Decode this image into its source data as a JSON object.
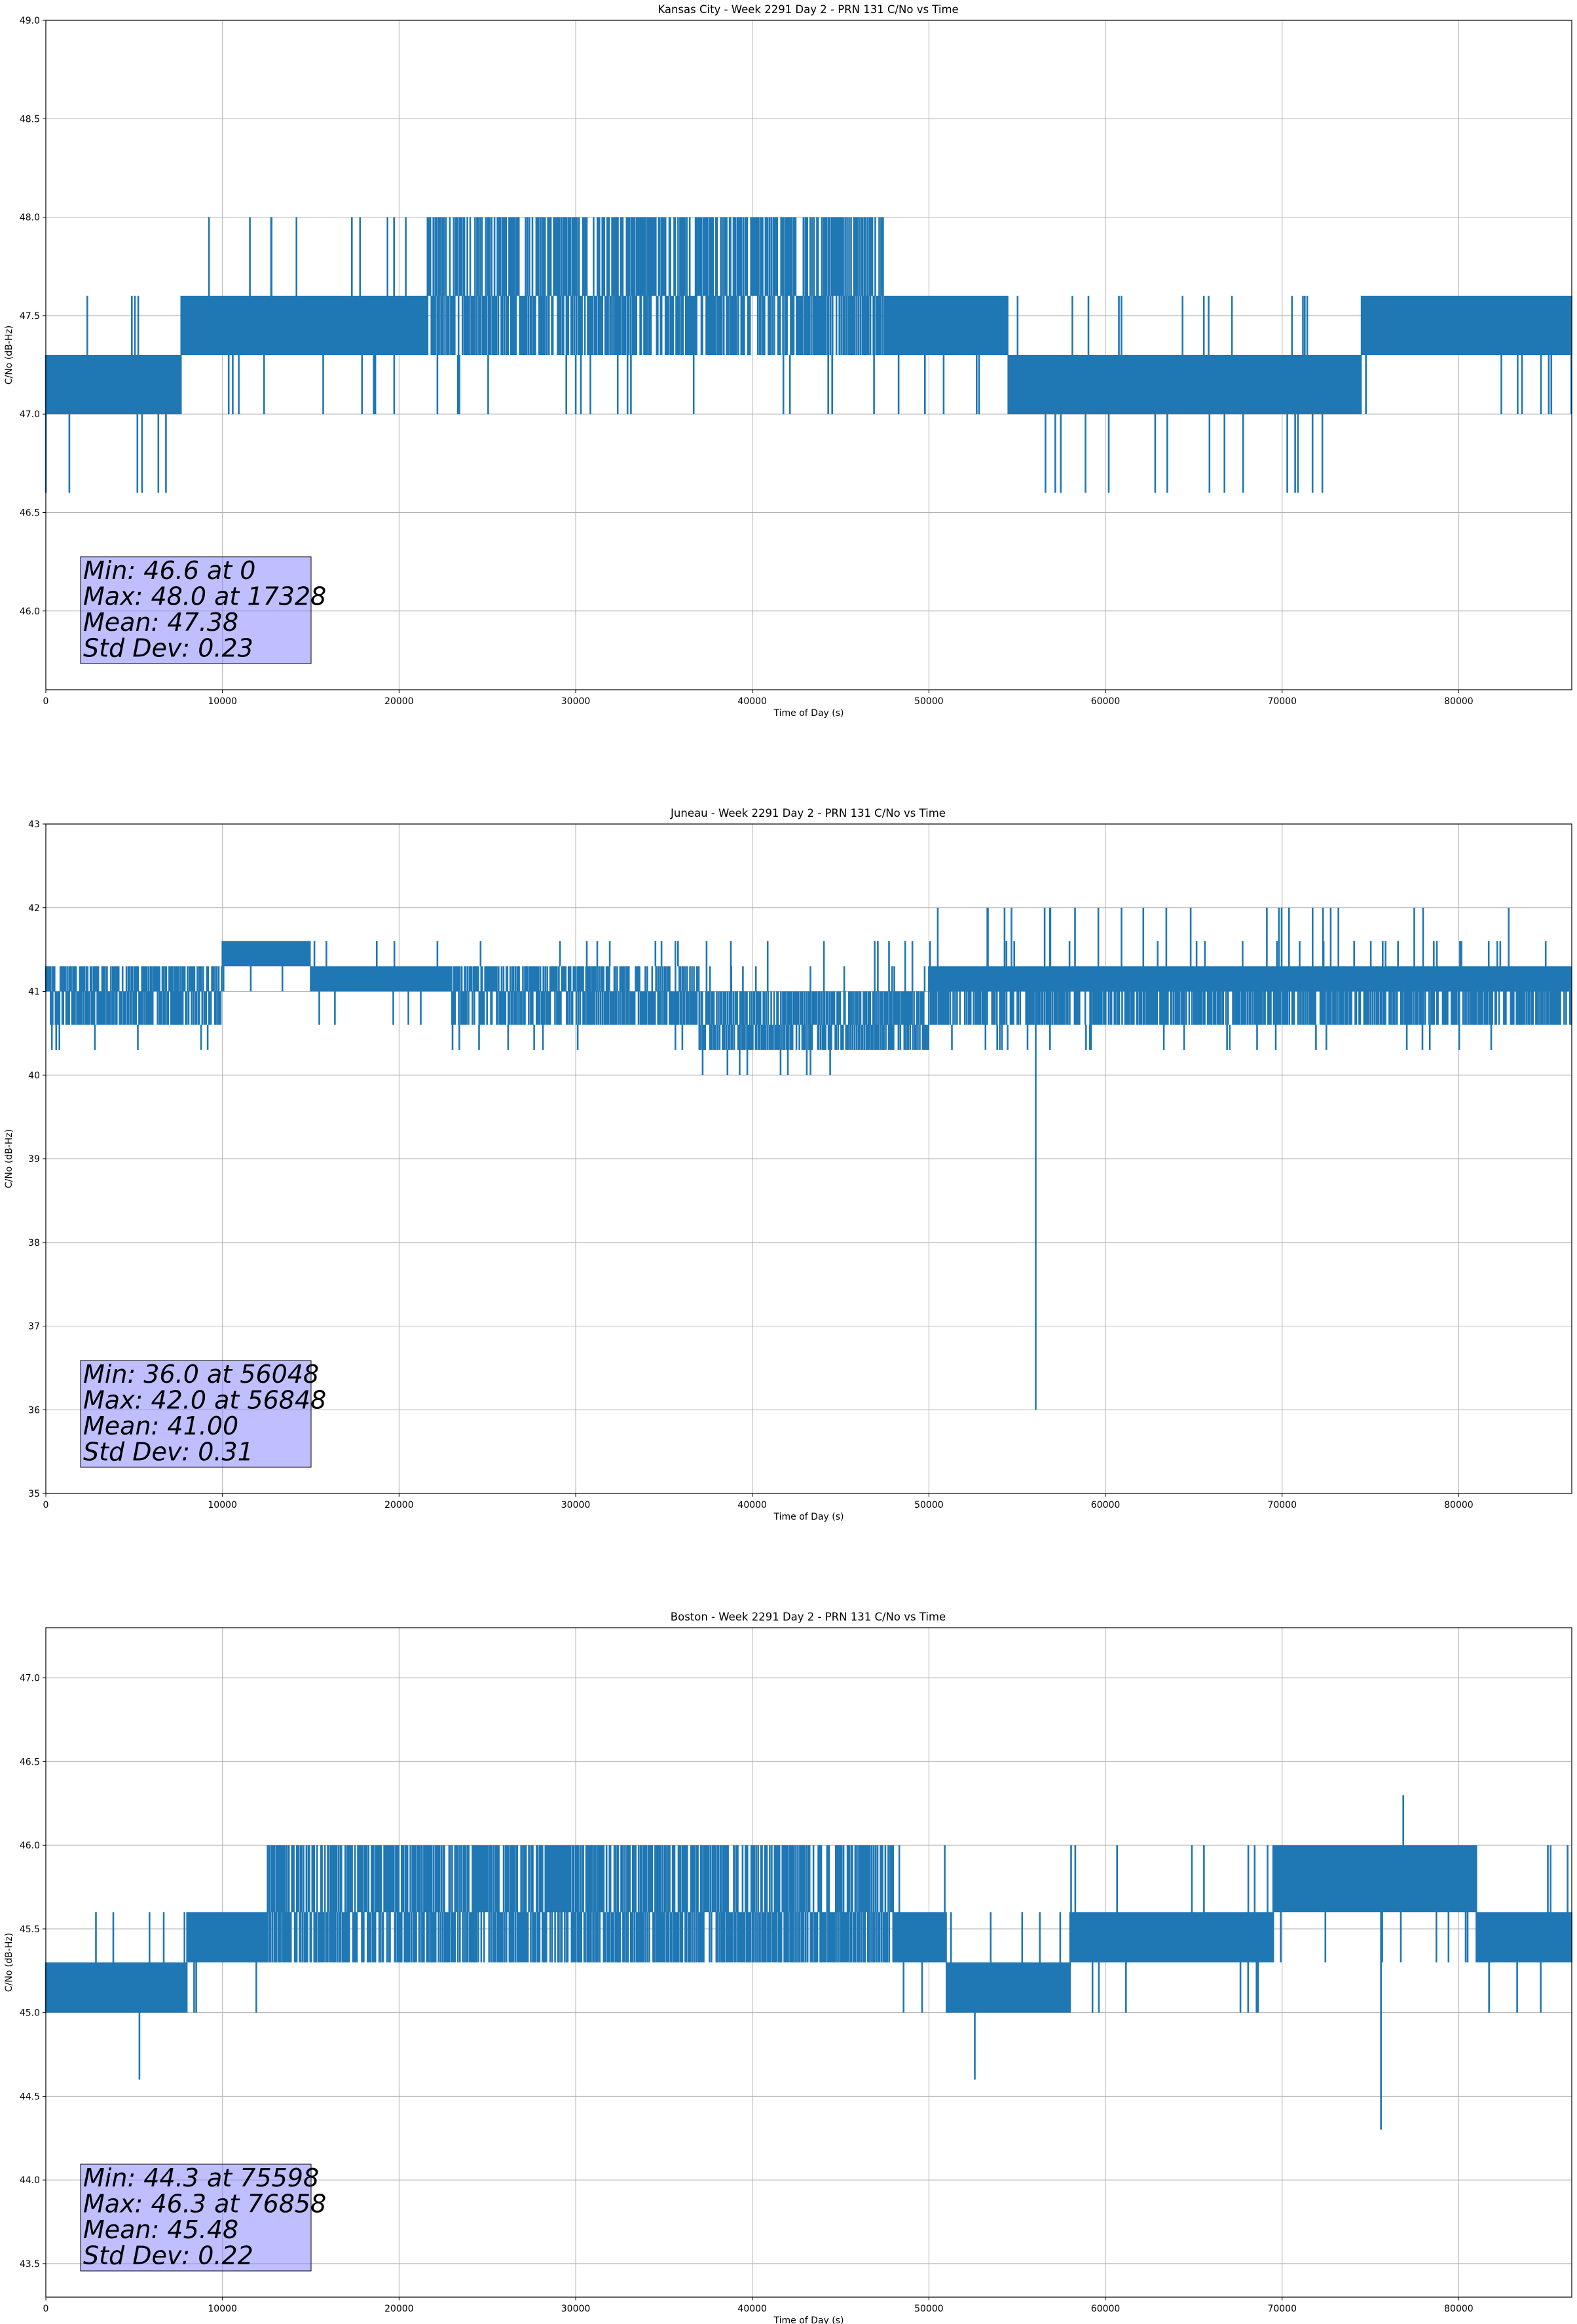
{
  "chart_data": [
    {
      "type": "line",
      "title": "Kansas City - Week 2291 Day 2 - PRN 131 C/No vs Time",
      "xlabel": "Time of Day (s)",
      "ylabel": "C/No (dB-Hz)",
      "xlim": [
        0,
        86400
      ],
      "ylim": [
        45.6,
        49.0
      ],
      "xticks": [
        0,
        10000,
        20000,
        30000,
        40000,
        50000,
        60000,
        70000,
        80000
      ],
      "yticks": [
        46.0,
        46.5,
        47.0,
        47.5,
        48.0,
        48.5,
        49.0
      ],
      "ytick_labels": [
        "46.0",
        "46.5",
        "47.0",
        "47.5",
        "48.0",
        "48.5",
        "49.0"
      ],
      "grid": true,
      "line_color": "#1f77b4",
      "series": [
        {
          "values_note": "1-second C/No samples, quantized levels",
          "segments": [
            {
              "x": [
                0,
                7700
              ],
              "levels": [
                47.0,
                47.3
              ],
              "occasional": [
                47.6,
                46.6
              ]
            },
            {
              "x": [
                7700,
                21500
              ],
              "levels": [
                47.3,
                47.6
              ],
              "occasional": [
                47.0,
                48.0
              ]
            },
            {
              "x": [
                21500,
                47500
              ],
              "levels": [
                47.3,
                47.6,
                48.0
              ],
              "occasional": [
                47.0
              ]
            },
            {
              "x": [
                47500,
                50000
              ],
              "levels": [
                47.3,
                47.6
              ],
              "occasional": [
                47.0
              ]
            },
            {
              "x": [
                50000,
                54500
              ],
              "levels": [
                47.3,
                47.6
              ],
              "occasional": [
                47.0
              ]
            },
            {
              "x": [
                54500,
                74500
              ],
              "levels": [
                47.0,
                47.3
              ],
              "occasional": [
                47.6,
                46.6
              ]
            },
            {
              "x": [
                74500,
                86400
              ],
              "levels": [
                47.3,
                47.6
              ],
              "occasional": [
                47.0
              ]
            }
          ],
          "extremes": [
            {
              "x": 0,
              "y": 46.6
            },
            {
              "x": 17328,
              "y": 48.0
            },
            {
              "x": 63500,
              "y": 46.6
            },
            {
              "x": 70900,
              "y": 46.6
            }
          ]
        }
      ],
      "annotation": {
        "lines": [
          "Min: 46.6 at 0",
          "Max: 48.0 at 17328",
          "Mean: 47.38",
          "Std Dev: 0.23"
        ],
        "box_color": "#8080ff"
      }
    },
    {
      "type": "line",
      "title": "Juneau - Week 2291 Day 2 - PRN 131 C/No vs Time",
      "xlabel": "Time of Day (s)",
      "ylabel": "C/No (dB-Hz)",
      "xlim": [
        0,
        86400
      ],
      "ylim": [
        35,
        43
      ],
      "xticks": [
        0,
        10000,
        20000,
        30000,
        40000,
        50000,
        60000,
        70000,
        80000
      ],
      "yticks": [
        35,
        36,
        37,
        38,
        39,
        40,
        41,
        42,
        43
      ],
      "ytick_labels": [
        "35",
        "36",
        "37",
        "38",
        "39",
        "40",
        "41",
        "42",
        "43"
      ],
      "grid": true,
      "line_color": "#1f77b4",
      "series": [
        {
          "values_note": "1-second C/No samples, quantized levels",
          "segments": [
            {
              "x": [
                0,
                10000
              ],
              "levels": [
                40.6,
                41.0,
                41.3
              ],
              "occasional": [
                40.3
              ]
            },
            {
              "x": [
                10000,
                15000
              ],
              "levels": [
                41.3,
                41.6
              ],
              "occasional": [
                41.0
              ]
            },
            {
              "x": [
                15000,
                23000
              ],
              "levels": [
                41.0,
                41.3
              ],
              "occasional": [
                40.6,
                41.6
              ]
            },
            {
              "x": [
                23000,
                37000
              ],
              "levels": [
                40.6,
                41.0,
                41.3
              ],
              "occasional": [
                40.3,
                41.6
              ]
            },
            {
              "x": [
                37000,
                50000
              ],
              "levels": [
                40.3,
                40.6,
                41.0
              ],
              "occasional": [
                40.0,
                41.3,
                41.6
              ]
            },
            {
              "x": [
                50000,
                86400
              ],
              "levels": [
                41.0,
                41.3,
                40.6
              ],
              "occasional": [
                41.6,
                42.0,
                40.3
              ]
            }
          ],
          "extremes": [
            {
              "x": 56048,
              "y": 36.0
            },
            {
              "x": 56848,
              "y": 42.0
            }
          ]
        }
      ],
      "annotation": {
        "lines": [
          "Min: 36.0 at 56048",
          "Max: 42.0 at 56848",
          "Mean: 41.00",
          "Std Dev: 0.31"
        ],
        "box_color": "#8080ff"
      }
    },
    {
      "type": "line",
      "title": "Boston - Week 2291 Day 2 - PRN 131 C/No vs Time",
      "xlabel": "Time of Day (s)",
      "ylabel": "C/No (dB-Hz)",
      "xlim": [
        0,
        86400
      ],
      "ylim": [
        43.3,
        47.3
      ],
      "xticks": [
        0,
        10000,
        20000,
        30000,
        40000,
        50000,
        60000,
        70000,
        80000
      ],
      "yticks": [
        43.5,
        44.0,
        44.5,
        45.0,
        45.5,
        46.0,
        46.5,
        47.0
      ],
      "ytick_labels": [
        "43.5",
        "44.0",
        "44.5",
        "45.0",
        "45.5",
        "46.0",
        "46.5",
        "47.0"
      ],
      "grid": true,
      "line_color": "#1f77b4",
      "series": [
        {
          "values_note": "1-second C/No samples, quantized levels",
          "segments": [
            {
              "x": [
                0,
                8000
              ],
              "levels": [
                45.0,
                45.3
              ],
              "occasional": [
                45.6
              ]
            },
            {
              "x": [
                8000,
                12500
              ],
              "levels": [
                45.3,
                45.6
              ],
              "occasional": [
                45.0
              ]
            },
            {
              "x": [
                12500,
                48000
              ],
              "levels": [
                45.3,
                45.6,
                46.0
              ],
              "occasional": []
            },
            {
              "x": [
                48000,
                51000
              ],
              "levels": [
                45.3,
                45.6
              ],
              "occasional": [
                45.0,
                46.0
              ]
            },
            {
              "x": [
                51000,
                58000
              ],
              "levels": [
                45.0,
                45.3
              ],
              "occasional": [
                45.6
              ]
            },
            {
              "x": [
                58000,
                69500
              ],
              "levels": [
                45.3,
                45.6
              ],
              "occasional": [
                45.0,
                46.0
              ]
            },
            {
              "x": [
                69500,
                81000
              ],
              "levels": [
                45.6,
                46.0
              ],
              "occasional": [
                45.3
              ]
            },
            {
              "x": [
                81000,
                86400
              ],
              "levels": [
                45.3,
                45.6
              ],
              "occasional": [
                45.0,
                46.0
              ]
            }
          ],
          "extremes": [
            {
              "x": 5300,
              "y": 44.6
            },
            {
              "x": 52600,
              "y": 44.6
            },
            {
              "x": 75598,
              "y": 44.3
            },
            {
              "x": 76858,
              "y": 46.3
            }
          ]
        }
      ],
      "annotation": {
        "lines": [
          "Min: 44.3 at 75598",
          "Max: 46.3 at 76858",
          "Mean: 45.48",
          "Std Dev: 0.22"
        ],
        "box_color": "#8080ff"
      }
    }
  ]
}
